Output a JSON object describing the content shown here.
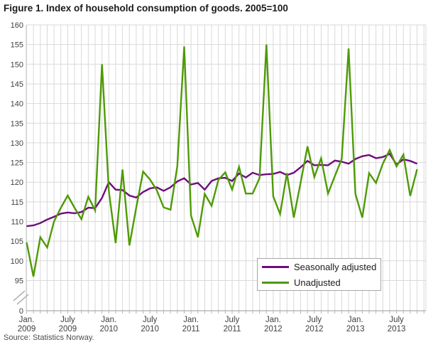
{
  "title": "Figure 1. Index of household consumption of goods. 2005=100",
  "source": "Source: Statistics Norway.",
  "colors": {
    "seasonally_adjusted": "#6e0d7c",
    "unadjusted": "#4e9a05",
    "gridline": "#d9d9d9",
    "axis_line": "#999999",
    "tick_mark": "#b3b3b3",
    "axis_label": "#404040",
    "title_text": "#1a1a1a",
    "source_text": "#4d4d4d",
    "legend_border": "#a6a6a6"
  },
  "legend": {
    "items": [
      {
        "label": "Seasonally adjusted",
        "color": "#6e0d7c"
      },
      {
        "label": "Unadjusted",
        "color": "#4e9a05"
      }
    ]
  },
  "chart_data": {
    "type": "line",
    "title": "Figure 1. Index of household consumption of goods. 2005=100",
    "x_unit": "month",
    "x_start": "January 2009",
    "x_end": "October 2013",
    "grid": true,
    "legend_position": "inside-bottom-right",
    "y_axis": {
      "ticks": [
        160,
        155,
        150,
        145,
        140,
        135,
        130,
        125,
        120,
        115,
        110,
        105,
        100,
        95,
        0
      ],
      "broken_axis": true,
      "display_range": [
        95,
        160
      ]
    },
    "x_ticks": [
      {
        "m": 0,
        "l1": "Jan.",
        "l2": "2009"
      },
      {
        "m": 6,
        "l1": "July",
        "l2": "2009"
      },
      {
        "m": 12,
        "l1": "Jan.",
        "l2": "2010"
      },
      {
        "m": 18,
        "l1": "July",
        "l2": "2010"
      },
      {
        "m": 24,
        "l1": "Jan.",
        "l2": "2011"
      },
      {
        "m": 30,
        "l1": "July",
        "l2": "2011"
      },
      {
        "m": 36,
        "l1": "Jan.",
        "l2": "2012"
      },
      {
        "m": 42,
        "l1": "July",
        "l2": "2012"
      },
      {
        "m": 48,
        "l1": "Jan.",
        "l2": "2013"
      },
      {
        "m": 54,
        "l1": "July",
        "l2": "2013"
      }
    ],
    "series": [
      {
        "name": "Seasonally adjusted",
        "color": "#6e0d7c",
        "values": [
          108.8,
          109.0,
          109.6,
          110.5,
          111.2,
          112.0,
          112.3,
          112.1,
          112.4,
          113.5,
          113.4,
          116.0,
          120.0,
          118.1,
          118.0,
          116.6,
          116.1,
          117.5,
          118.4,
          118.7,
          117.8,
          118.7,
          120.2,
          121.0,
          119.4,
          119.8,
          118.1,
          120.3,
          121.0,
          121.1,
          120.3,
          122.2,
          121.2,
          122.4,
          121.8,
          122.0,
          122.1,
          122.6,
          121.8,
          122.4,
          123.8,
          125.4,
          124.3,
          124.4,
          124.3,
          125.5,
          125.2,
          124.7,
          125.9,
          126.6,
          126.9,
          126.1,
          126.4,
          127.2,
          124.5,
          125.8,
          125.4,
          124.7
        ]
      },
      {
        "name": "Unadjusted",
        "color": "#4e9a05",
        "values": [
          104.7,
          96.0,
          106.0,
          103.4,
          110.0,
          113.5,
          116.6,
          113.5,
          110.6,
          116.3,
          112.8,
          150.0,
          117.8,
          104.5,
          123.2,
          103.9,
          113.5,
          122.7,
          120.7,
          118.0,
          113.6,
          113.0,
          124.1,
          154.5,
          111.5,
          106.0,
          117.0,
          114.0,
          120.6,
          122.5,
          118.1,
          123.9,
          117.1,
          117.1,
          121.0,
          155.0,
          116.4,
          111.9,
          122.3,
          111.0,
          119.9,
          129.1,
          121.3,
          126.1,
          117.1,
          121.6,
          125.9,
          154.0,
          117.0,
          111.0,
          122.3,
          119.8,
          124.7,
          128.2,
          124.0,
          127.0,
          116.5,
          123.3
        ]
      }
    ]
  }
}
